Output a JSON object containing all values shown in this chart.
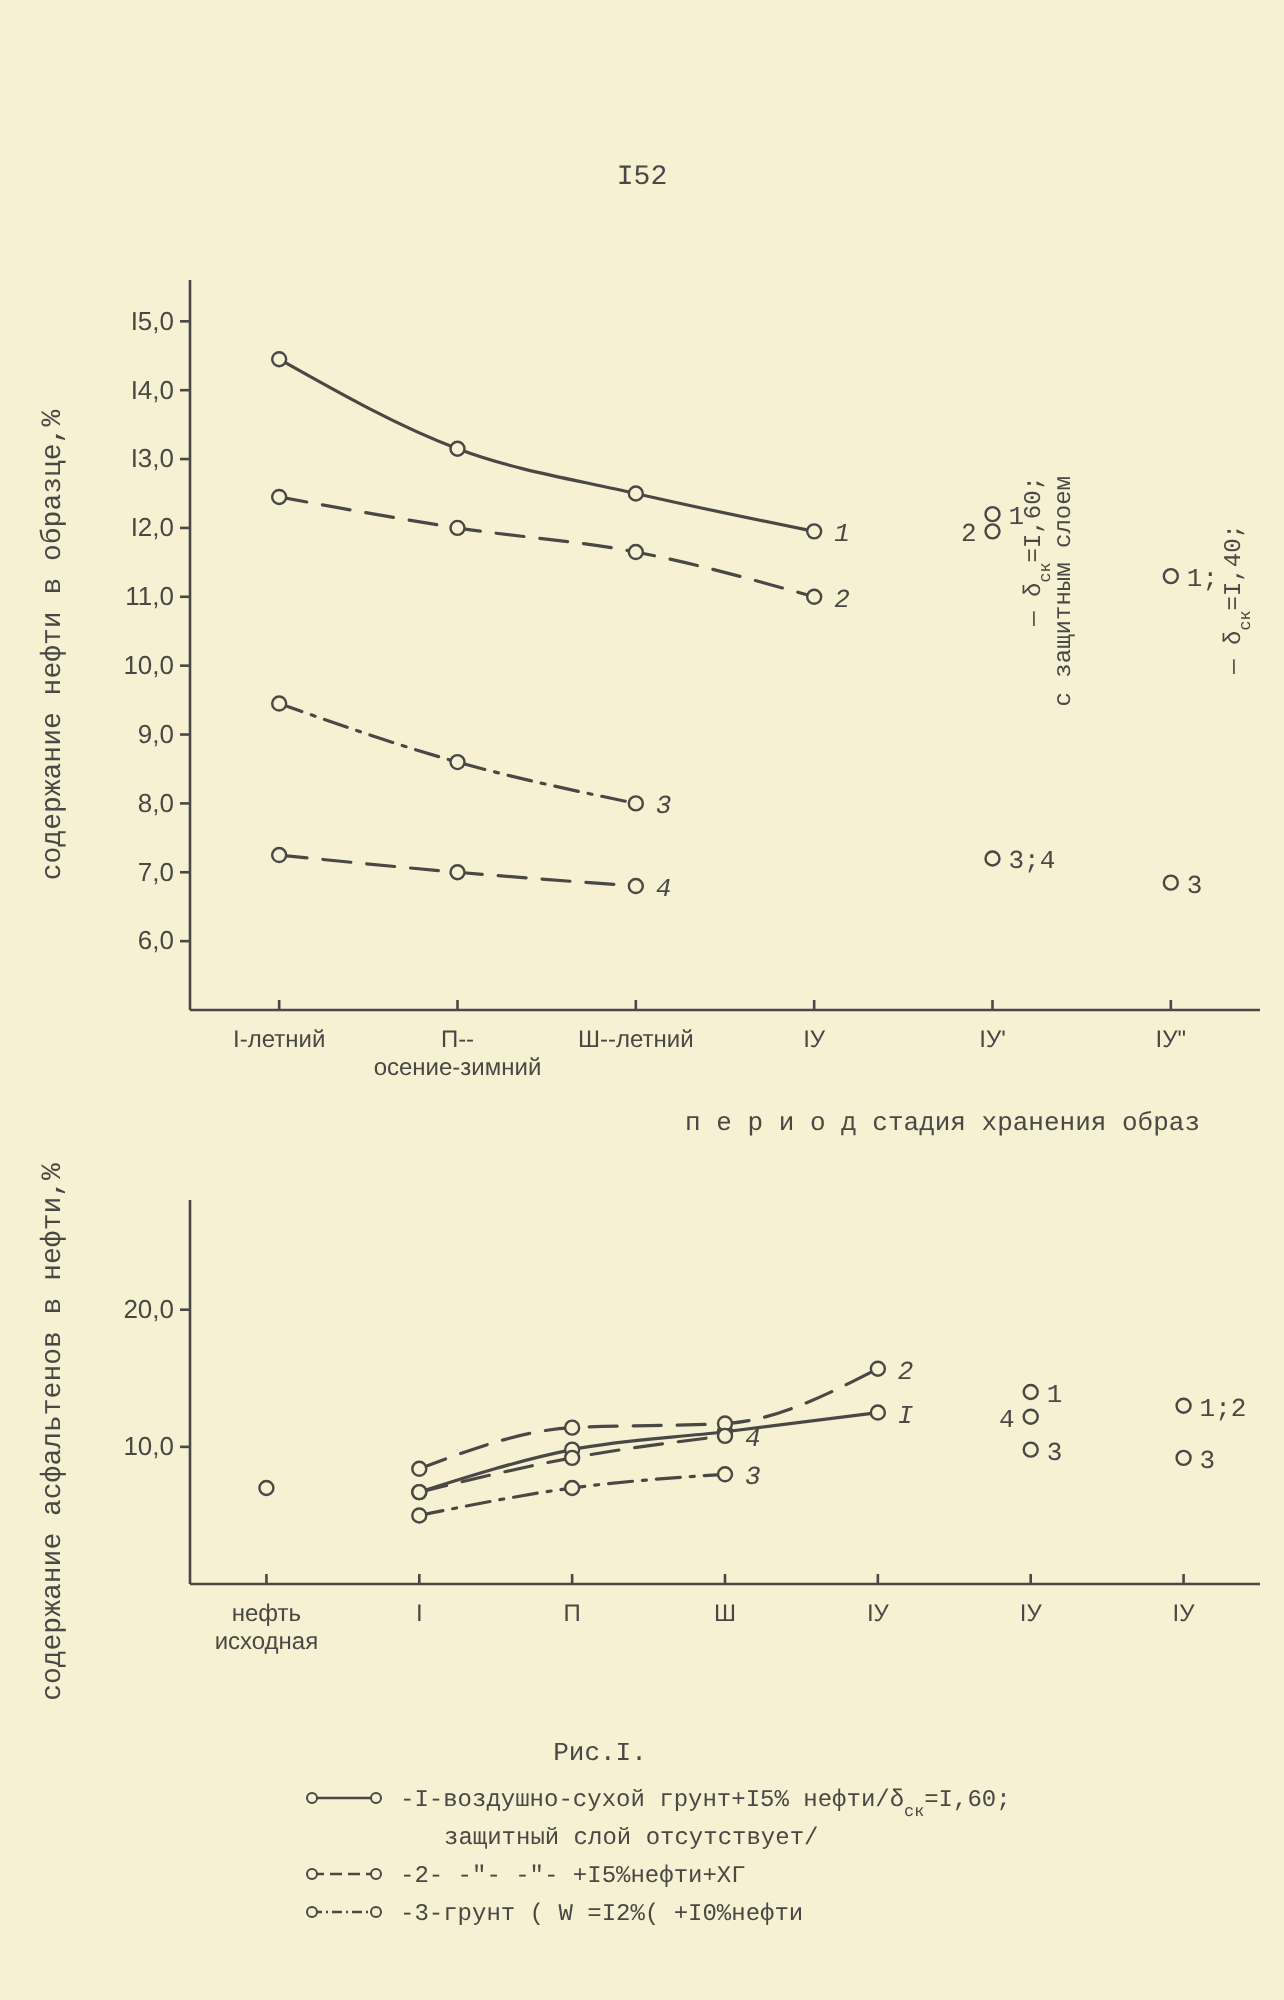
{
  "chart_data": [
    {
      "type": "line",
      "xlabel": "п е р и о д   стадия хранения образ",
      "ylabel": "содержание нефти в образце,%",
      "marker": "circle",
      "categories": [
        "I-летний",
        "П--осение-зимний",
        "Ш--летний",
        "IУ",
        "IУ'",
        "IУ\""
      ],
      "ylim": [
        5,
        15.6
      ],
      "yticks": [
        {
          "value": 6,
          "label": "6,0"
        },
        {
          "value": 7,
          "label": "7,0"
        },
        {
          "value": 8,
          "label": "8,0"
        },
        {
          "value": 9,
          "label": "9,0"
        },
        {
          "value": 10,
          "label": "10,0"
        },
        {
          "value": 11,
          "label": "11,0"
        },
        {
          "value": 12,
          "label": "I2,0"
        },
        {
          "value": 13,
          "label": "I3,0"
        },
        {
          "value": 14,
          "label": "I4,0"
        },
        {
          "value": 15,
          "label": "I5,0"
        }
      ],
      "series": [
        {
          "name": "1",
          "color": "#4a4844",
          "line_style": "solid",
          "values": [
            14.45,
            13.15,
            12.5,
            11.95,
            null,
            null
          ]
        },
        {
          "name": "2",
          "color": "#4a4844",
          "line_style": "dashed",
          "values": [
            12.45,
            12.0,
            11.65,
            11.0,
            null,
            null
          ]
        },
        {
          "name": "3",
          "color": "#4a4844",
          "line_style": "dotted",
          "values": [
            9.45,
            8.6,
            8.0,
            null,
            null,
            null
          ]
        },
        {
          "name": "4",
          "color": "#4a4844",
          "line_style": "dashed",
          "values": [
            7.25,
            7.0,
            6.8,
            null,
            null,
            null
          ]
        },
        {
          "type": "scatter",
          "name": "1",
          "color": "#4a4844",
          "values": [
            null,
            null,
            null,
            null,
            12.2,
            null
          ]
        },
        {
          "type": "scatter",
          "name": "2",
          "color": "#4a4844",
          "values": [
            null,
            null,
            null,
            null,
            11.95,
            null
          ]
        },
        {
          "type": "scatter",
          "name": "3;4",
          "color": "#4a4844",
          "values": [
            null,
            null,
            null,
            null,
            7.2,
            null
          ]
        },
        {
          "type": "scatter",
          "name": "1;",
          "color": "#4a4844",
          "values": [
            null,
            null,
            null,
            null,
            null,
            11.3
          ]
        },
        {
          "type": "scatter",
          "name": "3",
          "color": "#4a4844",
          "values": [
            null,
            null,
            null,
            null,
            null,
            6.85
          ]
        }
      ],
      "annotations": [
        "I52",
        "— δ$_{ск}$=I,60;",
        "с защитным слоем",
        "— δ$_{ск}$=I,40;"
      ]
    },
    {
      "type": "line",
      "ylabel": "содержание асфальтенов в нефти,%",
      "marker": "circle",
      "categories": [
        "нефть исходная",
        "I",
        "П",
        "Ш",
        "IУ",
        "IУ",
        "IУ"
      ],
      "ylim": [
        0,
        28
      ],
      "yticks": [
        {
          "value": 10,
          "label": "10,0"
        },
        {
          "value": 20,
          "label": "20,0"
        }
      ],
      "series": [
        {
          "name": "I",
          "color": "#4a4844",
          "line_style": "solid",
          "values": [
            null,
            6.7,
            9.8,
            11.1,
            12.5,
            null,
            null
          ]
        },
        {
          "name": "2",
          "color": "#4a4844",
          "line_style": "dashed",
          "values": [
            null,
            8.4,
            11.4,
            11.7,
            15.7,
            null,
            null
          ]
        },
        {
          "name": "3",
          "color": "#4a4844",
          "line_style": "dotted",
          "values": [
            null,
            5.0,
            7.0,
            8.0,
            null,
            null,
            null
          ]
        },
        {
          "name": "4",
          "color": "#4a4844",
          "line_style": "dashed",
          "values": [
            null,
            6.7,
            9.2,
            10.8,
            null,
            null,
            null
          ]
        },
        {
          "type": "scatter",
          "color": "#4a4844",
          "values": [
            7.0,
            null,
            null,
            null,
            null,
            null,
            null
          ]
        },
        {
          "type": "scatter",
          "name": "1",
          "color": "#4a4844",
          "values": [
            null,
            null,
            null,
            null,
            null,
            14.0,
            null
          ]
        },
        {
          "type": "scatter",
          "name": "4",
          "color": "#4a4844",
          "values": [
            null,
            null,
            null,
            null,
            null,
            12.2,
            null
          ]
        },
        {
          "type": "scatter",
          "name": "3",
          "color": "#4a4844",
          "values": [
            null,
            null,
            null,
            null,
            null,
            9.8,
            9.2
          ]
        },
        {
          "type": "scatter",
          "name": "1;2",
          "color": "#4a4844",
          "values": [
            null,
            null,
            null,
            null,
            null,
            null,
            13.0
          ]
        }
      ],
      "annotations": [
        "Рис.I.",
        "-I-воздушно-сухой грунт+I5% нефти/δ$_{ск}$=I,60;",
        "защитный слой отсутствует/",
        "-2-   -\"-        -\"-     +I5%нефти+ХГ",
        "-3-грунт ( W =I2%( +I0%нефти"
      ]
    }
  ]
}
